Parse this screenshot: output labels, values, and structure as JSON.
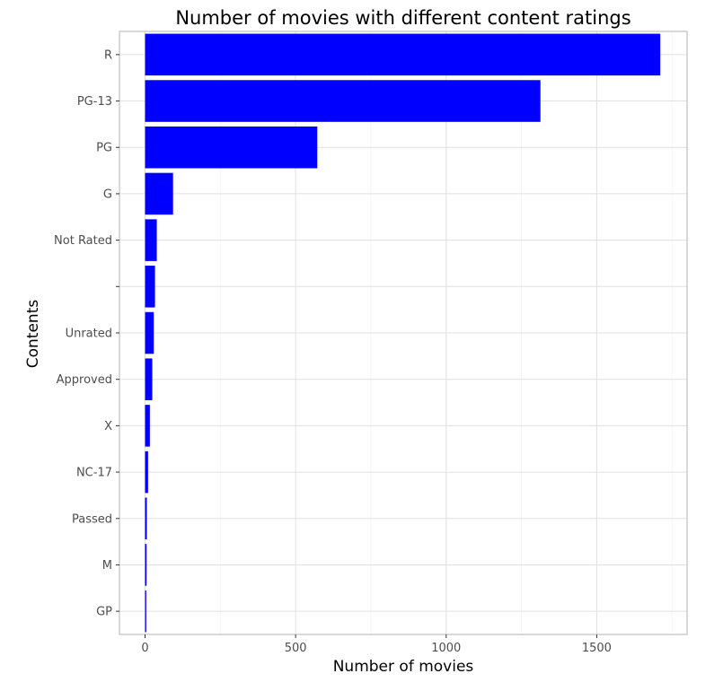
{
  "chart_data": {
    "type": "bar",
    "orientation": "horizontal",
    "title": "Number of movies with different content ratings",
    "xlabel": "Number of movies",
    "ylabel": "Contents",
    "categories": [
      "R",
      "PG-13",
      "PG",
      "G",
      "Not Rated",
      "",
      "Unrated",
      "Approved",
      "X",
      "NC-17",
      "Passed",
      "M",
      "GP"
    ],
    "values": [
      1711,
      1313,
      572,
      93,
      39,
      33,
      29,
      24,
      16,
      10,
      6,
      5,
      4
    ],
    "xlim": [
      -85,
      1800
    ],
    "xticks": [
      0,
      500,
      1000,
      1500
    ],
    "grid": true,
    "bar_color": "#0000ff",
    "legend": "none"
  }
}
